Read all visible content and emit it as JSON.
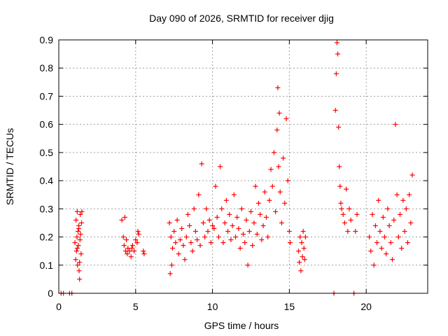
{
  "chart_data": {
    "type": "scatter",
    "title": "Day 090 of 2026, SRMTID for receiver djig",
    "xlabel": "GPS time / hours",
    "ylabel": "SRMTID / TECUs",
    "xlim": [
      0,
      24
    ],
    "ylim": [
      0,
      0.9
    ],
    "xticks": [
      0,
      5,
      10,
      15,
      20
    ],
    "xtick_labels": [
      "0",
      "5",
      "10",
      "15",
      "20"
    ],
    "yticks": [
      0,
      0.1,
      0.2,
      0.3,
      0.4,
      0.5,
      0.6,
      0.7,
      0.8,
      0.9
    ],
    "ytick_labels": [
      "0",
      "0.1",
      "0.2",
      "0.3",
      "0.4",
      "0.5",
      "0.6",
      "0.7",
      "0.8",
      "0.9"
    ],
    "grid": true,
    "marker": "+",
    "color": "#ff0000",
    "series": [
      {
        "name": "SRMTID",
        "x": [
          0.15,
          0.3,
          0.7,
          0.85,
          1.05,
          1.1,
          1.12,
          1.15,
          1.18,
          1.2,
          1.22,
          1.25,
          1.28,
          1.3,
          1.32,
          1.35,
          1.38,
          1.4,
          1.42,
          1.45,
          1.48,
          1.5,
          1.2,
          1.3,
          1.35,
          4.1,
          4.2,
          4.25,
          4.3,
          4.35,
          4.4,
          4.45,
          4.5,
          4.6,
          4.7,
          4.75,
          4.8,
          4.9,
          5.0,
          5.1,
          5.15,
          5.2,
          5.5,
          5.55,
          7.2,
          7.25,
          7.3,
          7.35,
          7.4,
          7.5,
          7.6,
          7.7,
          7.8,
          7.9,
          8.0,
          8.1,
          8.2,
          8.3,
          8.4,
          8.5,
          8.6,
          8.7,
          8.8,
          8.9,
          9.0,
          9.1,
          9.2,
          9.3,
          9.4,
          9.5,
          9.6,
          9.7,
          9.8,
          9.9,
          10.0,
          10.1,
          10.2,
          10.3,
          10.4,
          10.5,
          10.6,
          10.7,
          10.8,
          10.9,
          11.0,
          11.1,
          11.2,
          11.3,
          11.4,
          11.5,
          11.6,
          11.7,
          11.8,
          11.9,
          12.0,
          12.1,
          12.2,
          12.3,
          12.4,
          12.5,
          12.6,
          12.7,
          12.8,
          12.9,
          13.0,
          13.1,
          13.2,
          13.3,
          13.4,
          13.5,
          13.6,
          13.7,
          13.8,
          13.9,
          14.0,
          14.1,
          14.2,
          14.25,
          14.3,
          14.35,
          14.4,
          14.5,
          14.6,
          14.7,
          14.8,
          14.9,
          15.0,
          15.05,
          15.6,
          15.65,
          15.7,
          15.75,
          15.8,
          15.85,
          15.9,
          15.95,
          16.0,
          16.05,
          17.9,
          18.0,
          18.05,
          18.1,
          18.15,
          18.2,
          18.25,
          18.3,
          18.35,
          18.4,
          18.5,
          18.6,
          18.7,
          18.8,
          18.9,
          19.0,
          19.2,
          19.3,
          19.4,
          20.2,
          20.3,
          20.4,
          20.5,
          20.6,
          20.7,
          20.8,
          20.9,
          21.0,
          21.1,
          21.2,
          21.3,
          21.4,
          21.5,
          21.6,
          21.7,
          21.8,
          21.9,
          22.0,
          22.1,
          22.2,
          22.3,
          22.4,
          22.5,
          22.6,
          22.7,
          22.8,
          22.9,
          23.0
        ],
        "y": [
          0.0,
          0.0,
          0.0,
          0.0,
          0.18,
          0.12,
          0.26,
          0.15,
          0.2,
          0.29,
          0.1,
          0.22,
          0.17,
          0.24,
          0.08,
          0.05,
          0.19,
          0.28,
          0.21,
          0.14,
          0.25,
          0.29,
          0.16,
          0.23,
          0.11,
          0.26,
          0.2,
          0.17,
          0.27,
          0.15,
          0.19,
          0.14,
          0.16,
          0.15,
          0.13,
          0.16,
          0.17,
          0.15,
          0.19,
          0.18,
          0.22,
          0.21,
          0.15,
          0.14,
          0.25,
          0.07,
          0.2,
          0.1,
          0.16,
          0.22,
          0.18,
          0.26,
          0.14,
          0.19,
          0.23,
          0.17,
          0.12,
          0.2,
          0.28,
          0.24,
          0.18,
          0.15,
          0.3,
          0.22,
          0.19,
          0.35,
          0.17,
          0.46,
          0.25,
          0.2,
          0.3,
          0.22,
          0.26,
          0.18,
          0.24,
          0.23,
          0.38,
          0.27,
          0.2,
          0.45,
          0.3,
          0.18,
          0.25,
          0.33,
          0.22,
          0.28,
          0.19,
          0.24,
          0.35,
          0.2,
          0.27,
          0.23,
          0.16,
          0.3,
          0.21,
          0.18,
          0.26,
          0.1,
          0.22,
          0.29,
          0.17,
          0.25,
          0.38,
          0.21,
          0.32,
          0.28,
          0.19,
          0.24,
          0.36,
          0.27,
          0.2,
          0.33,
          0.44,
          0.38,
          0.5,
          0.29,
          0.58,
          0.73,
          0.45,
          0.64,
          0.36,
          0.25,
          0.48,
          0.32,
          0.62,
          0.4,
          0.22,
          0.18,
          0.15,
          0.11,
          0.2,
          0.08,
          0.18,
          0.13,
          0.22,
          0.16,
          0.12,
          0.2,
          0.0,
          0.65,
          0.78,
          0.89,
          0.85,
          0.59,
          0.45,
          0.38,
          0.32,
          0.3,
          0.28,
          0.25,
          0.37,
          0.22,
          0.3,
          0.26,
          0.0,
          0.22,
          0.28,
          0.2,
          0.15,
          0.28,
          0.1,
          0.24,
          0.18,
          0.33,
          0.22,
          0.16,
          0.27,
          0.2,
          0.14,
          0.3,
          0.24,
          0.18,
          0.12,
          0.26,
          0.6,
          0.35,
          0.2,
          0.28,
          0.16,
          0.33,
          0.22,
          0.3,
          0.18,
          0.35,
          0.25,
          0.42
        ]
      }
    ]
  }
}
